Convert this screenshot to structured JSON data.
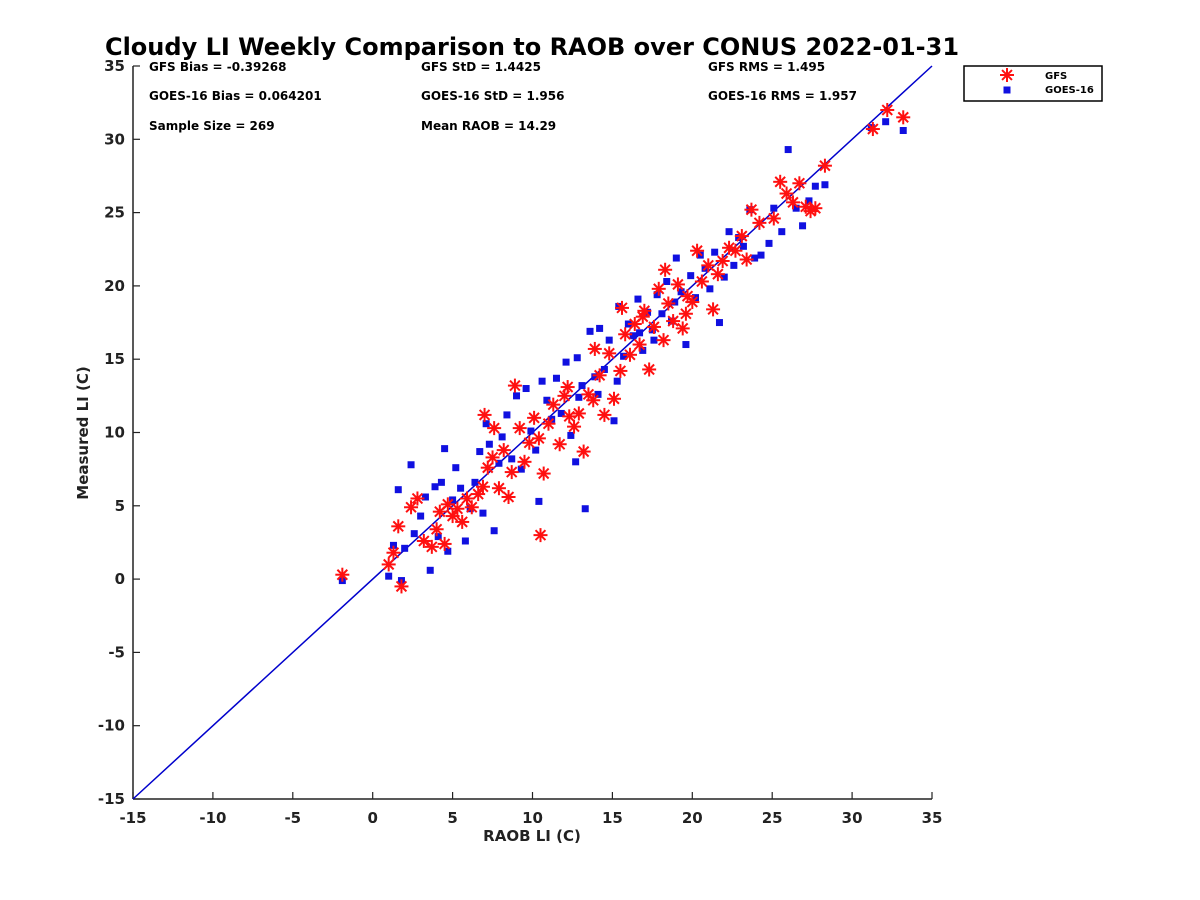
{
  "chart_data": {
    "type": "scatter",
    "title": "Cloudy LI Weekly Comparison to RAOB over CONUS 2022-01-31",
    "xlabel": "RAOB LI (C)",
    "ylabel": "Measured LI (C)",
    "xlim": [
      -15,
      35
    ],
    "ylim": [
      -15,
      35
    ],
    "xticks": [
      "-15",
      "-10",
      "-5",
      "0",
      "5",
      "10",
      "15",
      "20",
      "25",
      "30",
      "35"
    ],
    "yticks": [
      "-15",
      "-10",
      "-5",
      "0",
      "5",
      "10",
      "15",
      "20",
      "25",
      "30",
      "35"
    ],
    "grid": false,
    "legend_position": "top-right, outside plot",
    "reference_line": {
      "name": "1:1 line",
      "from": [
        -15,
        -15
      ],
      "to": [
        35,
        35
      ],
      "color": "#0000cc"
    },
    "stats": {
      "gfs_bias": "GFS Bias = -0.39268",
      "gfs_std": "GFS StD = 1.4425",
      "gfs_rms": "GFS RMS = 1.495",
      "goes_bias": "GOES-16 Bias = 0.064201",
      "goes_std": "GOES-16 StD = 1.956",
      "goes_rms": "GOES-16 RMS = 1.957",
      "sample_size": "Sample Size = 269",
      "mean_raob": "Mean RAOB = 14.29"
    },
    "series": [
      {
        "name": "GFS",
        "marker": "asterisk",
        "color": "#ff1010",
        "points": [
          [
            -1.9,
            0.3
          ],
          [
            1.0,
            1.0
          ],
          [
            1.3,
            1.8
          ],
          [
            1.6,
            3.6
          ],
          [
            1.8,
            -0.5
          ],
          [
            2.4,
            4.9
          ],
          [
            2.8,
            5.5
          ],
          [
            3.2,
            2.6
          ],
          [
            3.7,
            2.2
          ],
          [
            4.0,
            3.4
          ],
          [
            4.2,
            4.6
          ],
          [
            4.5,
            2.4
          ],
          [
            4.7,
            5.1
          ],
          [
            5.0,
            4.3
          ],
          [
            5.3,
            4.8
          ],
          [
            5.6,
            3.9
          ],
          [
            5.9,
            5.5
          ],
          [
            6.2,
            4.9
          ],
          [
            6.6,
            5.8
          ],
          [
            6.9,
            6.3
          ],
          [
            7.2,
            7.6
          ],
          [
            7.5,
            8.3
          ],
          [
            7.0,
            11.2
          ],
          [
            7.6,
            10.3
          ],
          [
            7.9,
            6.2
          ],
          [
            8.2,
            8.8
          ],
          [
            8.5,
            5.6
          ],
          [
            8.7,
            7.3
          ],
          [
            8.9,
            13.2
          ],
          [
            9.2,
            10.3
          ],
          [
            9.5,
            8.0
          ],
          [
            9.8,
            9.3
          ],
          [
            10.1,
            11.0
          ],
          [
            10.4,
            9.6
          ],
          [
            10.5,
            3.0
          ],
          [
            10.7,
            7.2
          ],
          [
            11.0,
            10.6
          ],
          [
            11.3,
            11.9
          ],
          [
            11.7,
            9.2
          ],
          [
            12.0,
            12.5
          ],
          [
            12.3,
            11.1
          ],
          [
            12.6,
            10.4
          ],
          [
            12.9,
            11.3
          ],
          [
            13.2,
            8.7
          ],
          [
            13.5,
            12.6
          ],
          [
            13.9,
            15.7
          ],
          [
            14.2,
            13.9
          ],
          [
            14.5,
            11.2
          ],
          [
            14.8,
            15.4
          ],
          [
            15.1,
            12.3
          ],
          [
            15.5,
            14.2
          ],
          [
            15.8,
            16.7
          ],
          [
            16.1,
            15.3
          ],
          [
            16.4,
            17.4
          ],
          [
            16.7,
            16.0
          ],
          [
            17.0,
            18.3
          ],
          [
            17.3,
            14.3
          ],
          [
            17.6,
            17.2
          ],
          [
            17.9,
            19.8
          ],
          [
            18.2,
            16.3
          ],
          [
            18.5,
            18.8
          ],
          [
            18.8,
            17.6
          ],
          [
            19.1,
            20.1
          ],
          [
            19.4,
            17.1
          ],
          [
            19.7,
            19.3
          ],
          [
            20.0,
            18.9
          ],
          [
            20.3,
            22.4
          ],
          [
            20.6,
            20.3
          ],
          [
            21.0,
            21.4
          ],
          [
            21.3,
            18.4
          ],
          [
            21.6,
            20.8
          ],
          [
            21.9,
            21.7
          ],
          [
            22.3,
            22.6
          ],
          [
            22.7,
            22.4
          ],
          [
            23.1,
            23.4
          ],
          [
            23.4,
            21.8
          ],
          [
            23.7,
            25.2
          ],
          [
            24.2,
            24.3
          ],
          [
            25.1,
            24.6
          ],
          [
            25.5,
            27.1
          ],
          [
            25.9,
            26.3
          ],
          [
            26.3,
            25.7
          ],
          [
            26.7,
            27.0
          ],
          [
            27.1,
            25.4
          ],
          [
            27.4,
            25.1
          ],
          [
            27.7,
            25.3
          ],
          [
            28.3,
            28.2
          ],
          [
            31.3,
            30.7
          ],
          [
            32.2,
            32.0
          ],
          [
            33.2,
            31.5
          ],
          [
            15.6,
            18.5
          ],
          [
            16.9,
            17.9
          ],
          [
            18.3,
            21.1
          ],
          [
            19.6,
            18.1
          ],
          [
            12.2,
            13.1
          ],
          [
            13.8,
            12.2
          ]
        ]
      },
      {
        "name": "GOES-16",
        "marker": "square",
        "color": "#1010e0",
        "points": [
          [
            -1.9,
            -0.1
          ],
          [
            1.0,
            0.2
          ],
          [
            1.3,
            2.3
          ],
          [
            1.6,
            6.1
          ],
          [
            1.8,
            -0.1
          ],
          [
            2.0,
            2.1
          ],
          [
            2.4,
            7.8
          ],
          [
            2.6,
            3.1
          ],
          [
            3.0,
            4.3
          ],
          [
            3.3,
            5.6
          ],
          [
            3.6,
            0.6
          ],
          [
            3.9,
            6.3
          ],
          [
            4.1,
            2.9
          ],
          [
            4.3,
            6.6
          ],
          [
            4.5,
            8.9
          ],
          [
            4.7,
            1.9
          ],
          [
            5.0,
            5.4
          ],
          [
            5.2,
            7.6
          ],
          [
            5.5,
            6.2
          ],
          [
            5.8,
            2.6
          ],
          [
            6.1,
            4.8
          ],
          [
            6.4,
            6.6
          ],
          [
            6.7,
            8.7
          ],
          [
            6.9,
            4.5
          ],
          [
            7.1,
            10.6
          ],
          [
            7.3,
            9.2
          ],
          [
            7.6,
            3.3
          ],
          [
            7.9,
            7.9
          ],
          [
            8.1,
            9.7
          ],
          [
            8.4,
            11.2
          ],
          [
            8.7,
            8.2
          ],
          [
            9.0,
            12.5
          ],
          [
            9.3,
            7.5
          ],
          [
            9.6,
            13.0
          ],
          [
            9.9,
            10.1
          ],
          [
            10.2,
            8.8
          ],
          [
            10.4,
            5.3
          ],
          [
            10.6,
            13.5
          ],
          [
            10.9,
            12.2
          ],
          [
            11.2,
            10.9
          ],
          [
            11.5,
            13.7
          ],
          [
            11.8,
            11.3
          ],
          [
            12.1,
            14.8
          ],
          [
            12.4,
            9.8
          ],
          [
            12.7,
            8.0
          ],
          [
            12.8,
            15.1
          ],
          [
            13.1,
            13.2
          ],
          [
            13.3,
            4.8
          ],
          [
            13.6,
            16.9
          ],
          [
            13.9,
            13.8
          ],
          [
            14.2,
            17.1
          ],
          [
            14.5,
            14.3
          ],
          [
            14.8,
            16.3
          ],
          [
            15.1,
            10.8
          ],
          [
            15.4,
            18.6
          ],
          [
            15.7,
            15.2
          ],
          [
            16.0,
            17.4
          ],
          [
            16.3,
            16.6
          ],
          [
            16.6,
            19.1
          ],
          [
            16.9,
            15.6
          ],
          [
            17.2,
            18.2
          ],
          [
            17.5,
            17.0
          ],
          [
            17.8,
            19.4
          ],
          [
            18.1,
            18.1
          ],
          [
            18.4,
            20.3
          ],
          [
            18.7,
            17.6
          ],
          [
            19.0,
            21.9
          ],
          [
            19.3,
            19.6
          ],
          [
            19.6,
            16.0
          ],
          [
            19.9,
            20.7
          ],
          [
            20.2,
            19.2
          ],
          [
            20.5,
            22.1
          ],
          [
            20.8,
            21.2
          ],
          [
            21.1,
            19.8
          ],
          [
            21.4,
            22.3
          ],
          [
            21.7,
            17.5
          ],
          [
            22.0,
            20.6
          ],
          [
            22.3,
            23.7
          ],
          [
            22.6,
            21.4
          ],
          [
            22.9,
            23.3
          ],
          [
            23.2,
            22.7
          ],
          [
            23.6,
            25.2
          ],
          [
            23.9,
            21.9
          ],
          [
            24.3,
            22.1
          ],
          [
            24.8,
            22.9
          ],
          [
            25.1,
            25.3
          ],
          [
            25.6,
            23.7
          ],
          [
            26.0,
            29.3
          ],
          [
            26.5,
            25.3
          ],
          [
            26.9,
            24.1
          ],
          [
            27.3,
            25.8
          ],
          [
            27.7,
            26.8
          ],
          [
            28.3,
            26.9
          ],
          [
            31.2,
            30.8
          ],
          [
            32.1,
            31.2
          ],
          [
            33.2,
            30.6
          ],
          [
            15.3,
            13.5
          ],
          [
            16.7,
            16.8
          ],
          [
            17.6,
            16.3
          ],
          [
            18.9,
            18.9
          ],
          [
            14.1,
            12.6
          ],
          [
            12.9,
            12.4
          ]
        ]
      }
    ]
  }
}
